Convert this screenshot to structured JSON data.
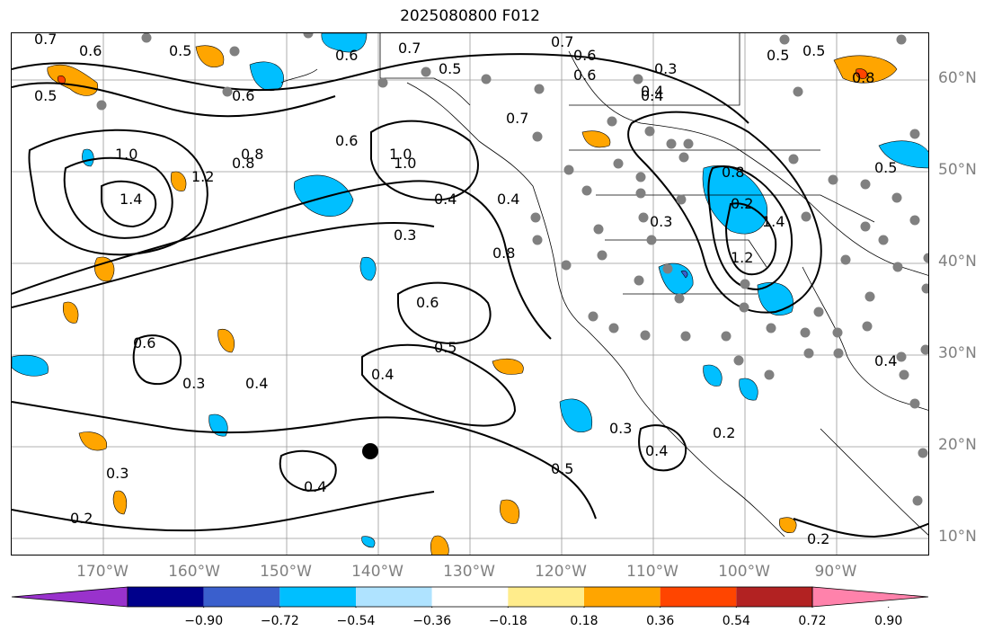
{
  "title": "2025080800 F012",
  "lat_labels": [
    "60°N",
    "50°N",
    "40°N",
    "30°N",
    "20°N",
    "10°N"
  ],
  "lon_labels": [
    "170°W",
    "160°W",
    "150°W",
    "140°W",
    "130°W",
    "120°W",
    "110°W",
    "100°W",
    "90°W"
  ],
  "colorbar": {
    "ticks": [
      "−0.90",
      "−0.72",
      "−0.54",
      "−0.36",
      "−0.18",
      "0.18",
      "0.36",
      "0.54",
      "0.72",
      "0.90"
    ],
    "colors": [
      "#9932cc",
      "#00008b",
      "#3a5fcd",
      "#00bfff",
      "#afe3ff",
      "#ffffff",
      "#ffec8b",
      "#ffa500",
      "#ff4500",
      "#b22222",
      "#ff82ab"
    ]
  },
  "contour_labels": [
    "0.7",
    "0.6",
    "0.5",
    "0.5",
    "0.6",
    "0.7",
    "0.5",
    "0.7",
    "0.6",
    "0.3",
    "0.6",
    "0.8",
    "0.4",
    "0.5",
    "0.8",
    "1.0",
    "0.8",
    "1.2",
    "1.4",
    "0.5",
    "0.6",
    "1.0",
    "0.4",
    "0.3",
    "0.8",
    "0.3",
    "0.6",
    "0.5",
    "0.4",
    "0.6",
    "0.4",
    "0.3",
    "0.4",
    "0.4",
    "0.3",
    "0.2",
    "0.3",
    "0.4",
    "0.5",
    "0.2",
    "0.4",
    "0.2",
    "0.7",
    "0.6",
    "0.8",
    "1.4",
    "1.2",
    "1.0",
    "0.5",
    "0.4",
    "0.2"
  ]
}
